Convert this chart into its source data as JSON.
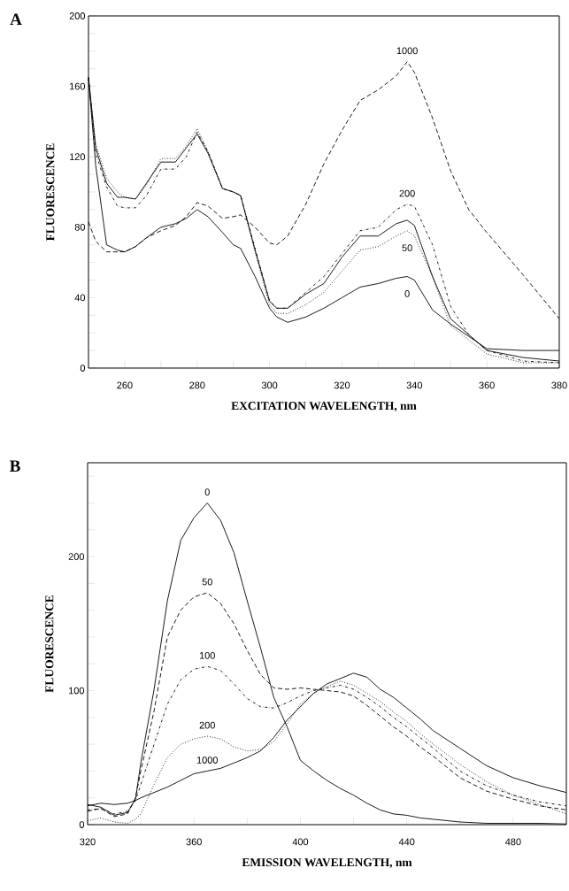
{
  "chart_data": [
    {
      "type": "line",
      "title": "A",
      "xlabel": "EXCITATION WAVELENGTH, nm",
      "ylabel": "FLUORESCENCE",
      "x": [
        250,
        252,
        255,
        258,
        260,
        263,
        266,
        270,
        274,
        277,
        280,
        283,
        287,
        290,
        292,
        296,
        300,
        302,
        305,
        310,
        315,
        320,
        325,
        330,
        335,
        338,
        340,
        345,
        350,
        355,
        360,
        370,
        380
      ],
      "series": [
        {
          "name": "0",
          "color": "#000000",
          "line_style": "solid",
          "values": [
            165,
            115,
            70,
            67,
            66,
            69,
            74,
            80,
            82,
            85,
            90,
            86,
            77,
            70,
            68,
            52,
            34,
            29,
            26,
            29,
            34,
            40,
            46,
            48,
            51,
            52,
            50,
            33,
            25,
            18,
            11,
            10,
            10
          ]
        },
        {
          "name": "50",
          "color": "#000000",
          "line_style": "dotted",
          "values": [
            165,
            127,
            108,
            100,
            97,
            96,
            104,
            119,
            119,
            126,
            136,
            123,
            102,
            100,
            98,
            66,
            36,
            31,
            31,
            36,
            43,
            55,
            67,
            69,
            75,
            78,
            75,
            52,
            24,
            16,
            8,
            3,
            3
          ]
        },
        {
          "name": "100",
          "color": "#000000",
          "line_style": "solid",
          "values": [
            165,
            125,
            105,
            97,
            97,
            96,
            105,
            117,
            117,
            125,
            133,
            122,
            102,
            100,
            98,
            67,
            38,
            34,
            34,
            42,
            48,
            63,
            75,
            75,
            82,
            84,
            81,
            52,
            28,
            19,
            10,
            6,
            4
          ]
        },
        {
          "name": "200",
          "color": "#000000",
          "line_style": "dashdot",
          "values": [
            165,
            122,
            103,
            92,
            91,
            91,
            98,
            113,
            113,
            120,
            134,
            123,
            102,
            100,
            98,
            68,
            38,
            34,
            34,
            43,
            52,
            65,
            78,
            80,
            90,
            93,
            92,
            70,
            35,
            19,
            10,
            4,
            3
          ]
        },
        {
          "name": "1000",
          "color": "#000000",
          "line_style": "dashed",
          "values": [
            83,
            72,
            66,
            66,
            66,
            69,
            74,
            78,
            81,
            86,
            94,
            92,
            85,
            86,
            87,
            80,
            71,
            70,
            75,
            93,
            116,
            135,
            152,
            158,
            166,
            174,
            168,
            142,
            112,
            90,
            77,
            53,
            28
          ]
        }
      ],
      "xlim": [
        250,
        380
      ],
      "ylim": [
        0,
        200
      ],
      "xticks": [
        260,
        {
          "value": 270,
          "label": null
        },
        280,
        {
          "value": 290,
          "label": null
        },
        300,
        {
          "value": 310,
          "label": null
        },
        320,
        {
          "value": 330,
          "label": null
        },
        340,
        {
          "value": 350,
          "label": null
        },
        360,
        {
          "value": 370,
          "label": null
        },
        380
      ],
      "yticks": [
        0,
        {
          "value": 10,
          "label": null
        },
        {
          "value": 20,
          "label": null
        },
        {
          "value": 30,
          "label": null
        },
        40,
        {
          "value": 50,
          "label": null
        },
        {
          "value": 60,
          "label": null
        },
        {
          "value": 70,
          "label": null
        },
        80,
        {
          "value": 90,
          "label": null
        },
        {
          "value": 100,
          "label": null
        },
        {
          "value": 110,
          "label": null
        },
        120,
        {
          "value": 130,
          "label": null
        },
        {
          "value": 140,
          "label": null
        },
        {
          "value": 150,
          "label": null
        },
        160,
        {
          "value": 170,
          "label": null
        },
        {
          "value": 180,
          "label": null
        },
        {
          "value": 190,
          "label": null
        },
        200
      ]
    },
    {
      "type": "line",
      "title": "B",
      "xlabel": "EMISSION WAVELENGTH, nm",
      "ylabel": "FLUORESCENCE",
      "x": [
        320,
        325,
        330,
        335,
        338,
        340,
        345,
        350,
        355,
        360,
        365,
        370,
        375,
        380,
        385,
        390,
        395,
        400,
        405,
        410,
        415,
        420,
        425,
        430,
        435,
        440,
        445,
        450,
        460,
        470,
        480,
        490,
        500
      ],
      "series": [
        {
          "name": "0",
          "color": "#000000",
          "line_style": "solid",
          "values": [
            15,
            13,
            7,
            9,
            19,
            46,
            101,
            167,
            212,
            229,
            240,
            227,
            203,
            167,
            132,
            95,
            73,
            48,
            40,
            33,
            27,
            22,
            16,
            11,
            8,
            7,
            5,
            4,
            2,
            1,
            1,
            1,
            0.5
          ]
        },
        {
          "name": "50",
          "color": "#000000",
          "line_style": "dashed",
          "values": [
            10,
            12,
            6,
            8,
            20,
            40,
            85,
            140,
            160,
            170,
            173,
            165,
            150,
            130,
            112,
            102,
            101,
            102,
            101,
            100,
            99,
            96,
            89,
            81,
            73,
            66,
            58,
            51,
            35,
            25,
            19,
            14,
            11
          ]
        },
        {
          "name": "100",
          "color": "#000000",
          "line_style": "dashdot",
          "values": [
            11,
            12,
            8,
            10,
            18,
            30,
            60,
            90,
            108,
            116,
            118,
            115,
            105,
            94,
            88,
            87,
            91,
            96,
            100,
            102,
            104,
            101,
            95,
            88,
            80,
            73,
            65,
            57,
            40,
            29,
            22,
            17,
            14
          ]
        },
        {
          "name": "200",
          "color": "#000000",
          "line_style": "dotted",
          "values": [
            3,
            5,
            2,
            1,
            4,
            8,
            30,
            50,
            60,
            64,
            66,
            64,
            58,
            55,
            56,
            62,
            75,
            90,
            98,
            103,
            107,
            104,
            98,
            92,
            84,
            77,
            68,
            60,
            45,
            32,
            22,
            15,
            8
          ]
        },
        {
          "name": "1000",
          "color": "#000000",
          "line_style": "solid",
          "values": [
            14,
            16,
            15,
            16,
            18,
            20,
            24,
            28,
            33,
            38,
            40,
            42,
            46,
            50,
            55,
            65,
            78,
            88,
            98,
            105,
            109,
            113,
            110,
            101,
            95,
            87,
            79,
            70,
            57,
            44,
            35,
            29,
            24
          ]
        }
      ],
      "xlim": [
        320,
        500
      ],
      "ylim": [
        0,
        270
      ],
      "xticks": [
        320,
        {
          "value": 340,
          "label": null
        },
        360,
        {
          "value": 380,
          "label": null
        },
        400,
        {
          "value": 420,
          "label": null
        },
        440,
        {
          "value": 460,
          "label": null
        },
        480
      ],
      "yticks": [
        0,
        {
          "value": 20,
          "label": null
        },
        {
          "value": 40,
          "label": null
        },
        {
          "value": 60,
          "label": null
        },
        {
          "value": 80,
          "label": null
        },
        100,
        {
          "value": 120,
          "label": null
        },
        {
          "value": 140,
          "label": null
        },
        {
          "value": 160,
          "label": null
        },
        {
          "value": 180,
          "label": null
        },
        200,
        {
          "value": 220,
          "label": null
        },
        {
          "value": 240,
          "label": null
        },
        {
          "value": 260,
          "label": null
        }
      ]
    }
  ]
}
